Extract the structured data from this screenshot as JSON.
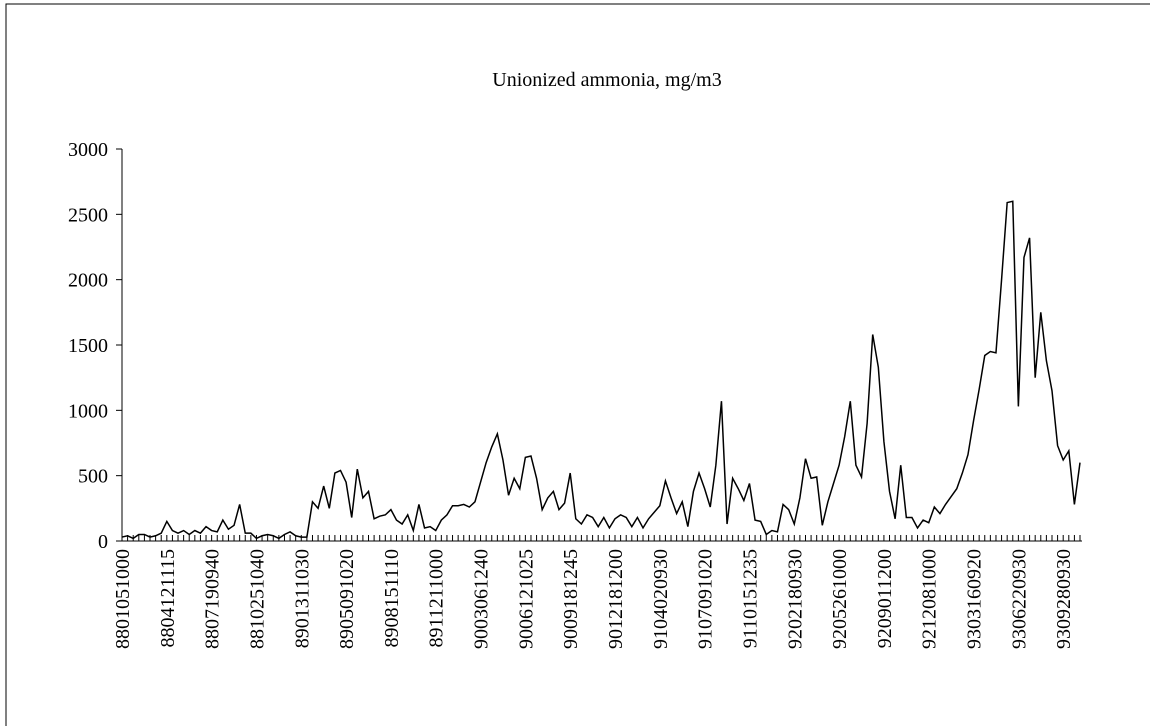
{
  "chart_data": {
    "type": "line",
    "title": "Unionized ammonia, mg/m3",
    "color": "#000000",
    "categories": [
      "8801051000",
      null,
      null,
      null,
      null,
      null,
      null,
      null,
      "8804121115",
      null,
      null,
      null,
      null,
      null,
      null,
      null,
      "8807190940",
      null,
      null,
      null,
      null,
      null,
      null,
      null,
      "8810251040",
      null,
      null,
      null,
      null,
      null,
      null,
      null,
      "8901311030",
      null,
      null,
      null,
      null,
      null,
      null,
      null,
      "8905091020",
      null,
      null,
      null,
      null,
      null,
      null,
      null,
      "8908151110",
      null,
      null,
      null,
      null,
      null,
      null,
      null,
      "8911211000",
      null,
      null,
      null,
      null,
      null,
      null,
      null,
      "9003061240",
      null,
      null,
      null,
      null,
      null,
      null,
      null,
      "9006121025",
      null,
      null,
      null,
      null,
      null,
      null,
      null,
      "9009181245",
      null,
      null,
      null,
      null,
      null,
      null,
      null,
      "9012181200",
      null,
      null,
      null,
      null,
      null,
      null,
      null,
      "9104020930",
      null,
      null,
      null,
      null,
      null,
      null,
      null,
      "9107091020",
      null,
      null,
      null,
      null,
      null,
      null,
      null,
      "9110151235",
      null,
      null,
      null,
      null,
      null,
      null,
      null,
      "9202180930",
      null,
      null,
      null,
      null,
      null,
      null,
      null,
      "9205261000",
      null,
      null,
      null,
      null,
      null,
      null,
      null,
      "9209011200",
      null,
      null,
      null,
      null,
      null,
      null,
      null,
      "9212081000",
      null,
      null,
      null,
      null,
      null,
      null,
      null,
      "9303160920",
      null,
      null,
      null,
      null,
      null,
      null,
      null,
      "9306220930",
      null,
      null,
      null,
      null,
      null,
      null,
      null,
      "9309280930",
      null,
      null,
      null
    ],
    "values": [
      30,
      40,
      20,
      50,
      50,
      30,
      40,
      60,
      150,
      80,
      60,
      80,
      50,
      80,
      60,
      110,
      80,
      70,
      160,
      90,
      120,
      280,
      60,
      60,
      20,
      40,
      50,
      40,
      20,
      50,
      70,
      40,
      30,
      30,
      300,
      250,
      420,
      250,
      520,
      540,
      450,
      180,
      550,
      330,
      380,
      170,
      190,
      200,
      240,
      160,
      130,
      200,
      80,
      280,
      100,
      110,
      80,
      160,
      200,
      270,
      270,
      280,
      260,
      300,
      450,
      600,
      720,
      820,
      620,
      350,
      480,
      400,
      640,
      650,
      480,
      240,
      330,
      380,
      240,
      290,
      520,
      170,
      130,
      200,
      180,
      110,
      180,
      100,
      170,
      200,
      180,
      110,
      180,
      100,
      170,
      220,
      270,
      460,
      330,
      210,
      300,
      110,
      380,
      520,
      400,
      260,
      580,
      1070,
      130,
      480,
      400,
      310,
      440,
      160,
      150,
      50,
      80,
      70,
      280,
      240,
      130,
      330,
      630,
      480,
      490,
      120,
      300,
      440,
      580,
      800,
      1070,
      580,
      490,
      900,
      1580,
      1330,
      760,
      380,
      170,
      580,
      180,
      180,
      100,
      160,
      140,
      260,
      210,
      280,
      340,
      400,
      520,
      660,
      920,
      1160,
      1420,
      1450,
      1440,
      2000,
      2590,
      2600,
      1030,
      2170,
      2320,
      1250,
      1750,
      1380,
      1150,
      730,
      620,
      690,
      280,
      600
    ],
    "ylim": [
      0,
      3000
    ],
    "yticks": [
      0,
      500,
      1000,
      1500,
      2000,
      2500,
      3000
    ]
  }
}
